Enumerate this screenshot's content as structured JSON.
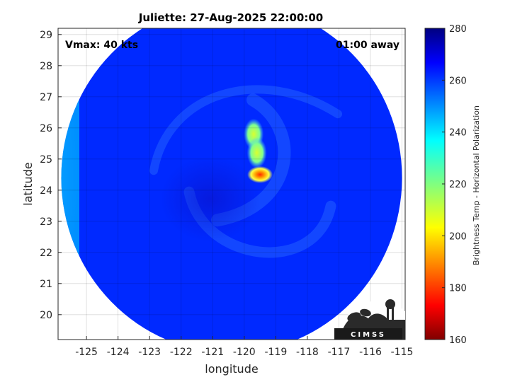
{
  "chart_data": {
    "type": "heatmap",
    "title": "Juliette: 27-Aug-2025 22:00:00",
    "xlabel": "longitude",
    "ylabel": "latitude",
    "xlim": [
      -125.9,
      -114.9
    ],
    "ylim": [
      19.2,
      29.2
    ],
    "xticks": [
      -125,
      -124,
      -123,
      -122,
      -121,
      -120,
      -119,
      -118,
      -117,
      -116,
      -115
    ],
    "yticks": [
      20,
      21,
      22,
      23,
      24,
      25,
      26,
      27,
      28,
      29
    ],
    "grid": true,
    "annotation_left": "Vmax: 40 kts",
    "annotation_right": "01:00 away",
    "colorbar": {
      "label": "Brightness Temp - Horizontal Polarization",
      "range": [
        160,
        280
      ],
      "ticks": [
        160,
        180,
        200,
        220,
        240,
        260,
        280
      ],
      "colormap": "jet"
    },
    "swath": {
      "center_lon": -120.4,
      "center_lat": 24.4,
      "radius_deg_lon": 5.4,
      "background_value": 262
    },
    "features": [
      {
        "kind": "blob",
        "lon": -119.5,
        "lat": 24.5,
        "value": 185
      },
      {
        "kind": "blob",
        "lon": -119.7,
        "lat": 25.8,
        "value": 212
      },
      {
        "kind": "blob",
        "lon": -119.6,
        "lat": 25.2,
        "value": 220
      },
      {
        "kind": "edge",
        "side": "west",
        "value": 238
      }
    ]
  },
  "logo": {
    "text": "CIMSS"
  }
}
